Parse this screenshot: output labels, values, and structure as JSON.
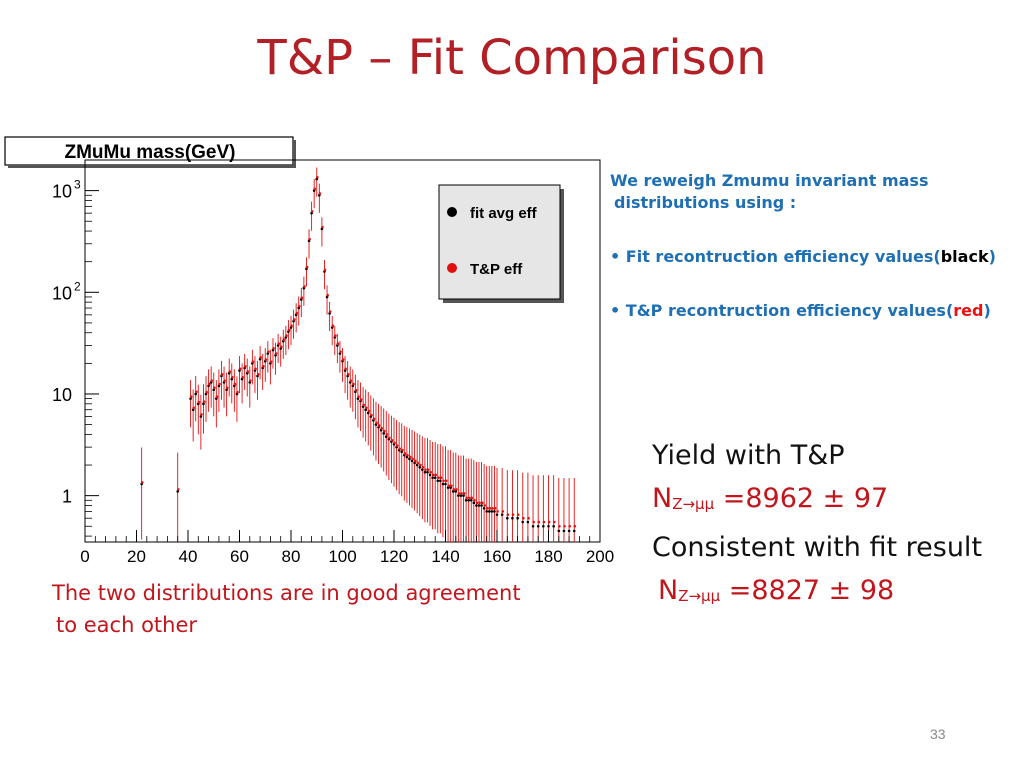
{
  "slide": {
    "title": "T&P – Fit Comparison",
    "page_number": "33"
  },
  "notes": {
    "intro_line1": "We reweigh Zmumu invariant mass",
    "intro_line2": "distributions using :",
    "bullet1_text": "• Fit recontruction efficiency values(",
    "bullet1_colorword": "black",
    "bullet1_close": ")",
    "bullet2_text": "• T&P recontruction efficiency values(",
    "bullet2_colorword": "red",
    "bullet2_close": ")"
  },
  "yield": {
    "heading": "Yield with T&P",
    "tp_symbol": "N",
    "tp_subscript": "Z→μμ",
    "tp_value": " =8962 ± 97",
    "consistent": "Consistent with fit result",
    "fit_symbol": "N",
    "fit_subscript": "Z→μμ",
    "fit_value": " =8827 ± 98"
  },
  "caption": {
    "line1": "The two distributions are in good agreement",
    "line2": "to each other"
  },
  "colors": {
    "title": "#b22025",
    "notes": "#1f6fb3",
    "accent_red": "#c0161c",
    "series_fit": "#000000",
    "series_tp": "#e01010"
  },
  "chart_data": {
    "type": "scatter",
    "title": "ZMuMu mass(GeV)",
    "xlabel": "",
    "ylabel": "",
    "xlim": [
      0,
      200
    ],
    "ylim": [
      0.35,
      2000
    ],
    "y_scale": "log",
    "x_ticks": [
      0,
      20,
      40,
      60,
      80,
      100,
      120,
      140,
      160,
      180,
      200
    ],
    "y_ticks": [
      {
        "value": 1,
        "label": "1"
      },
      {
        "value": 10,
        "label": "10"
      },
      {
        "value": 100,
        "label": "10",
        "exp": "2"
      },
      {
        "value": 1000,
        "label": "10",
        "exp": "3"
      }
    ],
    "legend_position": "top-right",
    "grid": false,
    "series": [
      {
        "name": "fit avg eff",
        "color": "#000000",
        "x": [
          22,
          36,
          41,
          42,
          43,
          44,
          45,
          46,
          47,
          48,
          49,
          50,
          51,
          52,
          53,
          54,
          55,
          56,
          57,
          58,
          59,
          60,
          61,
          62,
          63,
          64,
          65,
          66,
          67,
          68,
          69,
          70,
          71,
          72,
          73,
          74,
          75,
          76,
          77,
          78,
          79,
          80,
          81,
          82,
          83,
          84,
          85,
          86,
          87,
          88,
          89,
          90,
          91,
          92,
          93,
          94,
          95,
          96,
          97,
          98,
          99,
          100,
          101,
          102,
          103,
          104,
          105,
          106,
          107,
          108,
          109,
          110,
          111,
          112,
          113,
          114,
          115,
          116,
          117,
          118,
          119,
          120,
          121,
          122,
          123,
          124,
          125,
          126,
          127,
          128,
          129,
          130,
          131,
          132,
          133,
          134,
          135,
          136,
          137,
          138,
          139,
          140,
          141,
          142,
          143,
          144,
          145,
          146,
          147,
          148,
          149,
          150,
          151,
          152,
          153,
          154,
          155,
          156,
          157,
          158,
          159,
          160,
          162,
          164,
          166,
          168,
          170,
          172,
          174,
          176,
          178,
          180,
          182,
          184,
          186,
          188,
          190
        ],
        "y": [
          1.3,
          1.1,
          9,
          7,
          10,
          8,
          6,
          8,
          10,
          12,
          13,
          11,
          9,
          12,
          15,
          13,
          11,
          16,
          14,
          12,
          10,
          17,
          14,
          18,
          16,
          13,
          20,
          17,
          15,
          22,
          18,
          21,
          25,
          20,
          27,
          24,
          30,
          28,
          33,
          36,
          41,
          45,
          52,
          60,
          70,
          85,
          110,
          170,
          320,
          600,
          1000,
          1300,
          900,
          420,
          160,
          90,
          62,
          45,
          36,
          30,
          25,
          21,
          17,
          15,
          13,
          12,
          10.5,
          9,
          8.5,
          7.5,
          7,
          6.5,
          6,
          5.5,
          5,
          4.7,
          4.4,
          4.1,
          3.8,
          3.6,
          3.4,
          3.2,
          3,
          2.8,
          2.7,
          2.5,
          2.4,
          2.3,
          2.2,
          2.1,
          2,
          1.9,
          1.8,
          1.7,
          1.7,
          1.6,
          1.5,
          1.5,
          1.4,
          1.4,
          1.3,
          1.3,
          1.2,
          1.2,
          1.1,
          1.1,
          1.0,
          1.0,
          1.0,
          0.9,
          0.9,
          0.9,
          0.85,
          0.8,
          0.8,
          0.8,
          0.75,
          0.7,
          0.7,
          0.7,
          0.7,
          0.65,
          0.65,
          0.6,
          0.6,
          0.6,
          0.55,
          0.55,
          0.5,
          0.5,
          0.5,
          0.5,
          0.5,
          0.45,
          0.45,
          0.45,
          0.45
        ]
      },
      {
        "name": "T&P eff",
        "color": "#e01010",
        "x": [
          22,
          36,
          41,
          42,
          43,
          44,
          45,
          46,
          47,
          48,
          49,
          50,
          51,
          52,
          53,
          54,
          55,
          56,
          57,
          58,
          59,
          60,
          61,
          62,
          63,
          64,
          65,
          66,
          67,
          68,
          69,
          70,
          71,
          72,
          73,
          74,
          75,
          76,
          77,
          78,
          79,
          80,
          81,
          82,
          83,
          84,
          85,
          86,
          87,
          88,
          89,
          90,
          91,
          92,
          93,
          94,
          95,
          96,
          97,
          98,
          99,
          100,
          101,
          102,
          103,
          104,
          105,
          106,
          107,
          108,
          109,
          110,
          111,
          112,
          113,
          114,
          115,
          116,
          117,
          118,
          119,
          120,
          121,
          122,
          123,
          124,
          125,
          126,
          127,
          128,
          129,
          130,
          131,
          132,
          133,
          134,
          135,
          136,
          137,
          138,
          139,
          140,
          141,
          142,
          143,
          144,
          145,
          146,
          147,
          148,
          149,
          150,
          151,
          152,
          153,
          154,
          155,
          156,
          157,
          158,
          159,
          160,
          162,
          164,
          166,
          168,
          170,
          172,
          174,
          176,
          178,
          180,
          182,
          184,
          186,
          188,
          190
        ],
        "y": [
          1.35,
          1.15,
          9.4,
          7.3,
          10.5,
          8.3,
          6.3,
          8.4,
          10.4,
          12.5,
          13.5,
          11.5,
          9.4,
          12.5,
          15.6,
          13.5,
          11.5,
          16.6,
          14.6,
          12.5,
          10.4,
          17.7,
          14.6,
          18.7,
          16.6,
          13.5,
          20.8,
          17.7,
          15.6,
          22.9,
          18.7,
          21.8,
          26,
          20.8,
          28.1,
          25,
          31.2,
          29.1,
          34.3,
          37.4,
          42.6,
          46.8,
          54,
          62.4,
          72.8,
          88.4,
          114,
          177,
          333,
          624,
          1040,
          1350,
          936,
          437,
          166,
          93.6,
          64.5,
          46.8,
          37.4,
          31.2,
          26,
          21.8,
          17.7,
          15.6,
          13.5,
          12.5,
          10.9,
          9.4,
          8.8,
          7.8,
          7.3,
          6.8,
          6.2,
          5.7,
          5.2,
          4.9,
          4.6,
          4.3,
          4.0,
          3.7,
          3.5,
          3.3,
          3.1,
          2.9,
          2.8,
          2.6,
          2.5,
          2.4,
          2.3,
          2.2,
          2.1,
          2.0,
          1.9,
          1.8,
          1.8,
          1.7,
          1.6,
          1.6,
          1.5,
          1.5,
          1.4,
          1.4,
          1.25,
          1.25,
          1.15,
          1.15,
          1.05,
          1.05,
          1.05,
          0.95,
          0.95,
          0.95,
          0.9,
          0.85,
          0.85,
          0.85,
          0.8,
          0.75,
          0.75,
          0.75,
          0.75,
          0.7,
          0.7,
          0.65,
          0.65,
          0.65,
          0.6,
          0.6,
          0.55,
          0.55,
          0.55,
          0.55,
          0.55,
          0.5,
          0.5,
          0.5,
          0.5
        ]
      }
    ]
  }
}
